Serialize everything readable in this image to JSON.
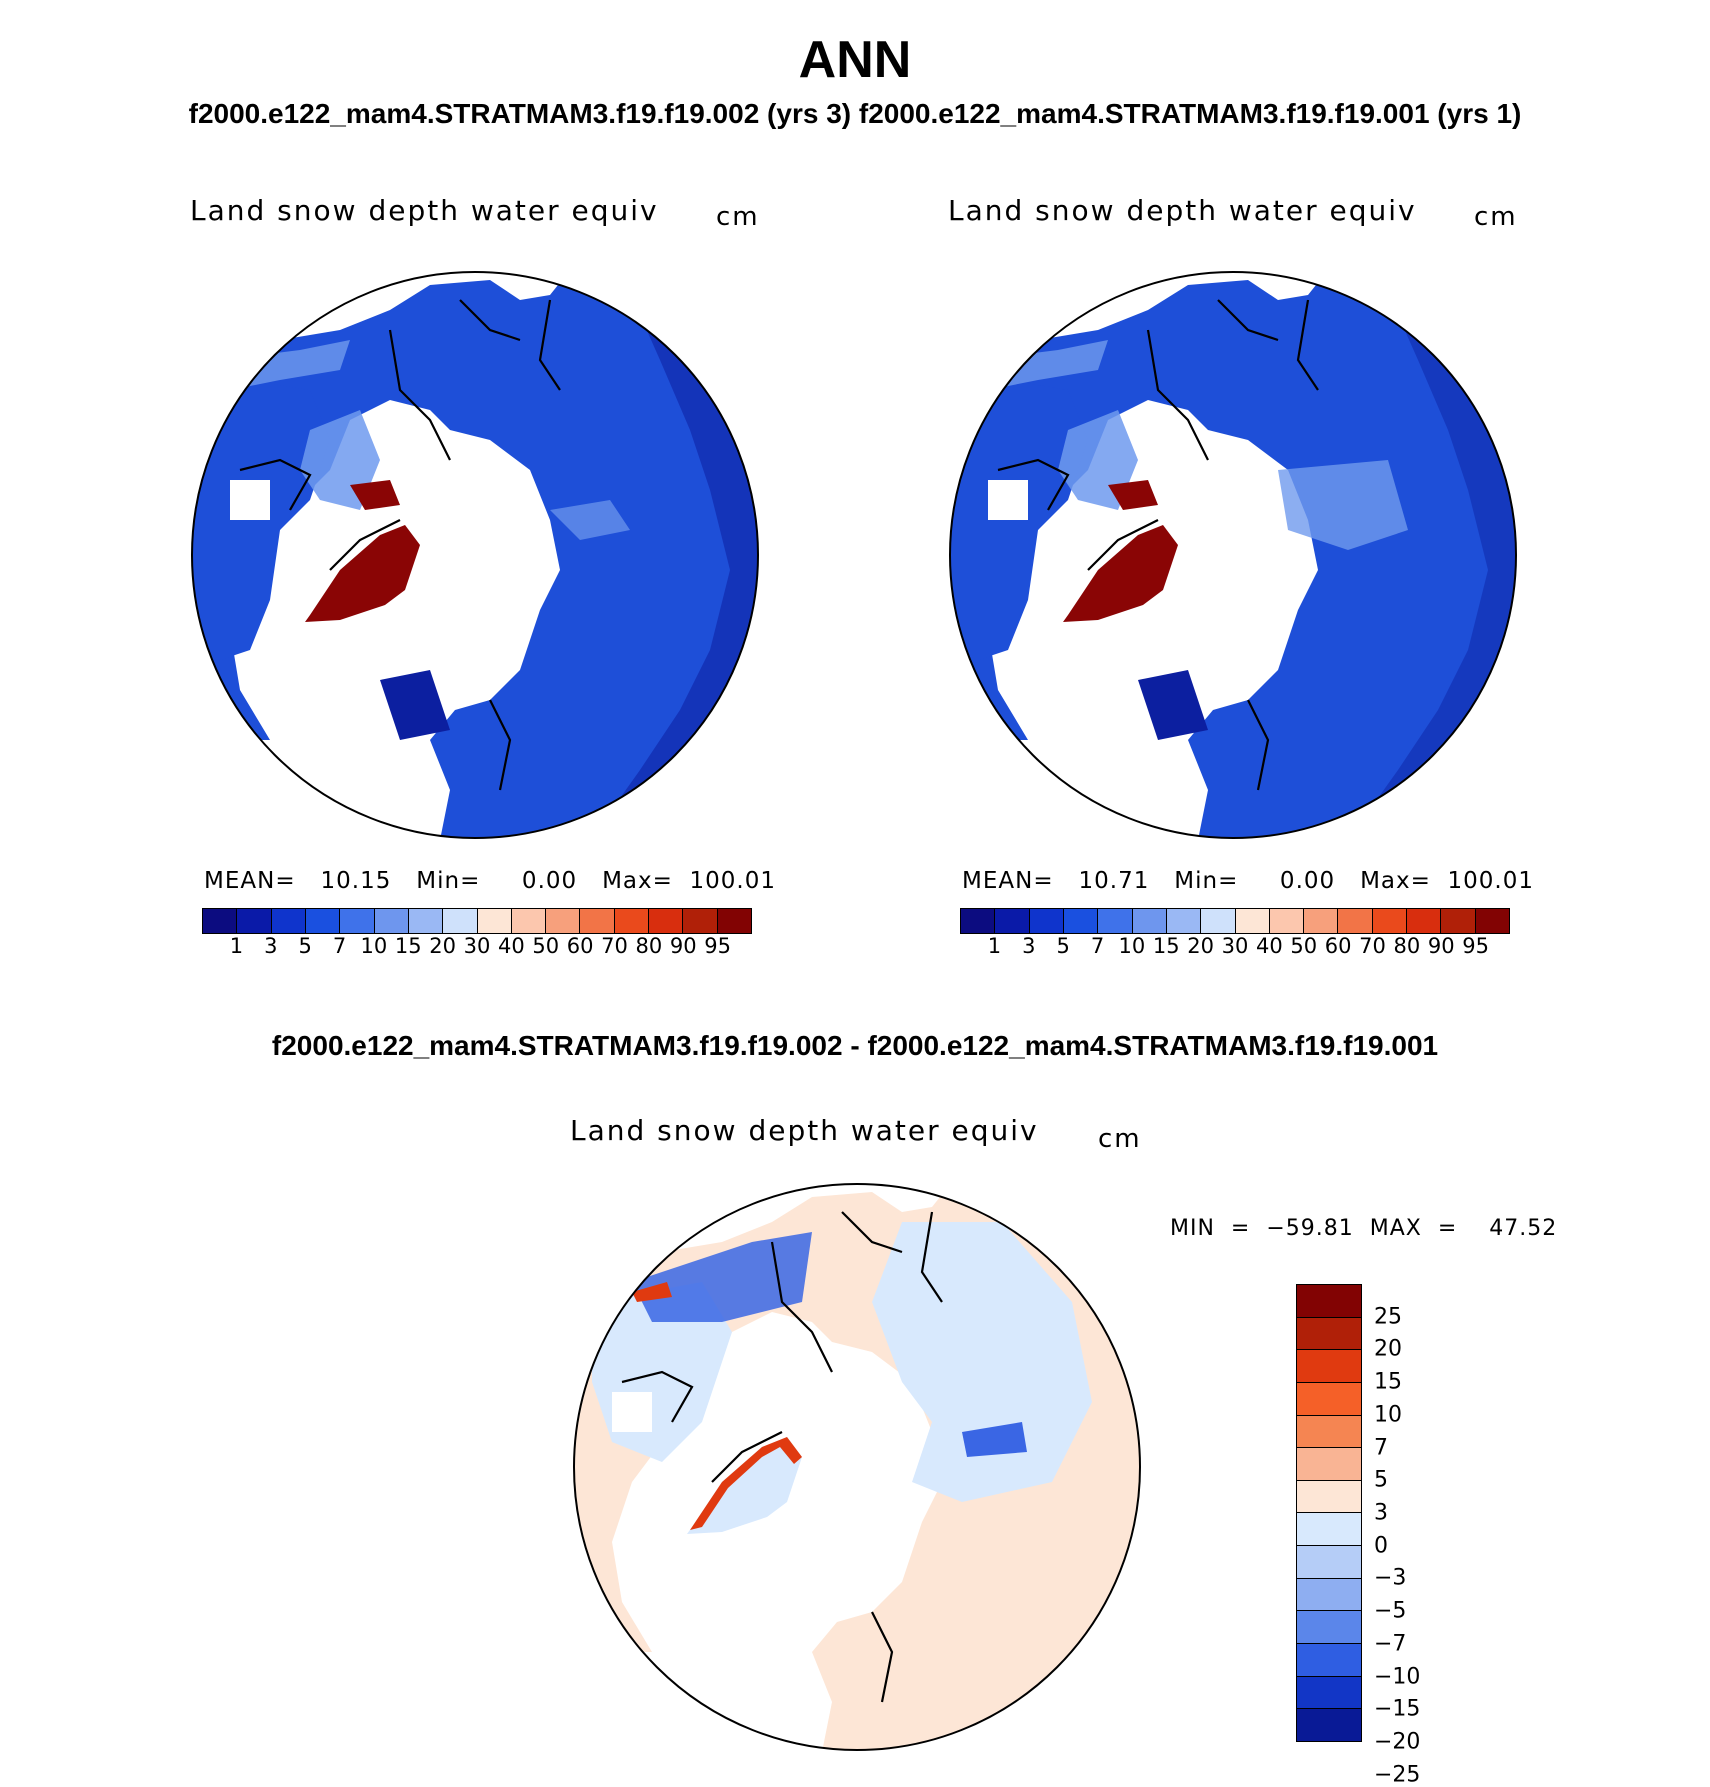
{
  "header": {
    "title": "ANN",
    "subtitle": "f2000.e122_mam4.STRATMAM3.f19.f19.002 (yrs 3)  f2000.e122_mam4.STRATMAM3.f19.f19.001 (yrs 1)",
    "diff_title": "f2000.e122_mam4.STRATMAM3.f19.f19.002 - f2000.e122_mam4.STRATMAM3.f19.f19.001"
  },
  "panels": [
    {
      "variable": "Land snow depth water equiv",
      "units": "cm",
      "stats": "MEAN=   10.15   Min=     0.00   Max=  100.01"
    },
    {
      "variable": "Land snow depth water equiv",
      "units": "cm",
      "stats": "MEAN=   10.71   Min=     0.00   Max=  100.01"
    }
  ],
  "difference": {
    "variable": "Land snow depth water equiv",
    "units": "cm",
    "stats": "MIN  =  −59.81  MAX  =    47.52"
  },
  "colorbar_abs": {
    "colors": [
      "#0c0c80",
      "#0a1aa8",
      "#0f34cc",
      "#1a50e0",
      "#3f72ea",
      "#6e96ee",
      "#9ab8f4",
      "#cfe1fb",
      "#fde6d6",
      "#fcc7ae",
      "#f7a07c",
      "#f27447",
      "#ea4a1c",
      "#d82e0e",
      "#b02008",
      "#820303"
    ],
    "labels": [
      "1",
      "3",
      "5",
      "7",
      "10",
      "15",
      "20",
      "30",
      "40",
      "50",
      "60",
      "70",
      "80",
      "90",
      "95"
    ]
  },
  "colorbar_diff": {
    "colors": [
      "#820303",
      "#b02008",
      "#e03a10",
      "#f56028",
      "#f58552",
      "#f9b494",
      "#fde6d6",
      "#d8e9fd",
      "#b5cdf7",
      "#8eaef1",
      "#5b86ea",
      "#2f5ee2",
      "#1236c6",
      "#091a96"
    ],
    "labels": [
      "25",
      "20",
      "15",
      "10",
      "7",
      "5",
      "3",
      "0",
      "−3",
      "−5",
      "−7",
      "−10",
      "−15",
      "−20",
      "−25"
    ]
  },
  "map_colors": {
    "land_blue": "#1e4fd8",
    "land_dark": "#0c1fa0",
    "land_light": "#6f9aee",
    "greenland": "#8a0505",
    "ocean": "#ffffff",
    "diff_pos": "#fde6d6",
    "diff_neg": "#d8e9fd",
    "diff_blue": "#3a66e4",
    "diff_red": "#e03a10"
  }
}
